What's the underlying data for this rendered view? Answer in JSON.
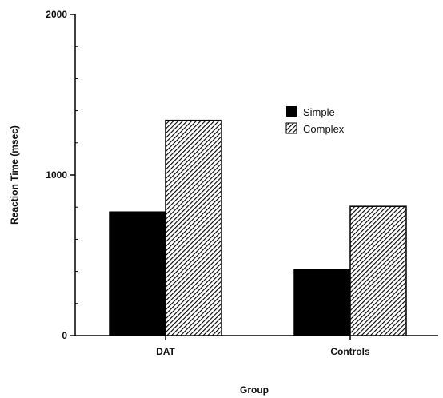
{
  "chart_data": {
    "type": "bar",
    "categories": [
      "DAT",
      "Controls"
    ],
    "series": [
      {
        "name": "Simple",
        "values": [
          770,
          410
        ],
        "pattern": "solid",
        "color": "#000000"
      },
      {
        "name": "Complex",
        "values": [
          1340,
          805
        ],
        "pattern": "hatched",
        "color": "#000000"
      }
    ],
    "ylim": [
      0,
      2000
    ],
    "yticks": [
      "0",
      "1000",
      "2000"
    ],
    "ylabel": "Reaction  Time  (msec)",
    "xlabel": "Group",
    "legend_position": "upper-right",
    "grid": false
  }
}
